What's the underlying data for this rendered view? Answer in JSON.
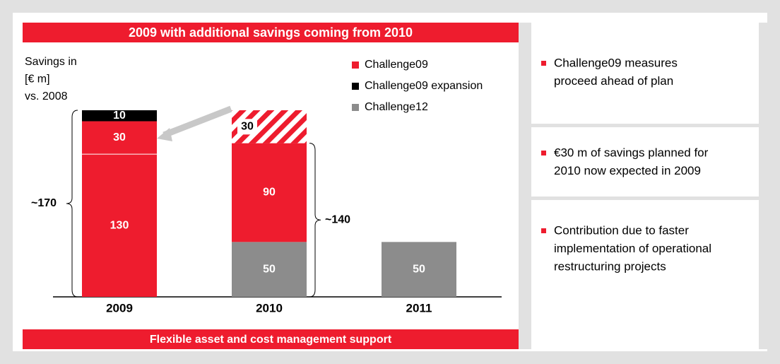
{
  "chart_data": {
    "type": "stacked-bar",
    "title": "2009 with additional savings coming from 2010",
    "footer": "Flexible asset and cost management support",
    "y_label": [
      "Savings in",
      "[€ m]",
      "vs. 2008"
    ],
    "categories": [
      "2009",
      "2010",
      "2011"
    ],
    "series": [
      {
        "name": "Challenge09",
        "color": "#ee1c2e",
        "values": [
          130,
          90,
          null
        ]
      },
      {
        "name": "Challenge09 expansion",
        "color": "#000000",
        "values": [
          10,
          null,
          null
        ]
      },
      {
        "name": "Challenge12",
        "color": "#8c8c8c",
        "values": [
          null,
          50,
          50
        ]
      }
    ],
    "shifted_savings": {
      "color": "#ee1c2e",
      "values": [
        30,
        30,
        null
      ],
      "hatched": [
        false,
        true,
        false
      ]
    },
    "annotations": [
      "~170",
      "~140"
    ]
  },
  "notes": [
    [
      "Challenge09 measures",
      "proceed ahead of plan"
    ],
    [
      "€30 m of savings planned for",
      "2010 now expected in 2009"
    ],
    [
      "Contribution due to faster",
      "implementation of operational",
      "restructuring projects"
    ]
  ]
}
